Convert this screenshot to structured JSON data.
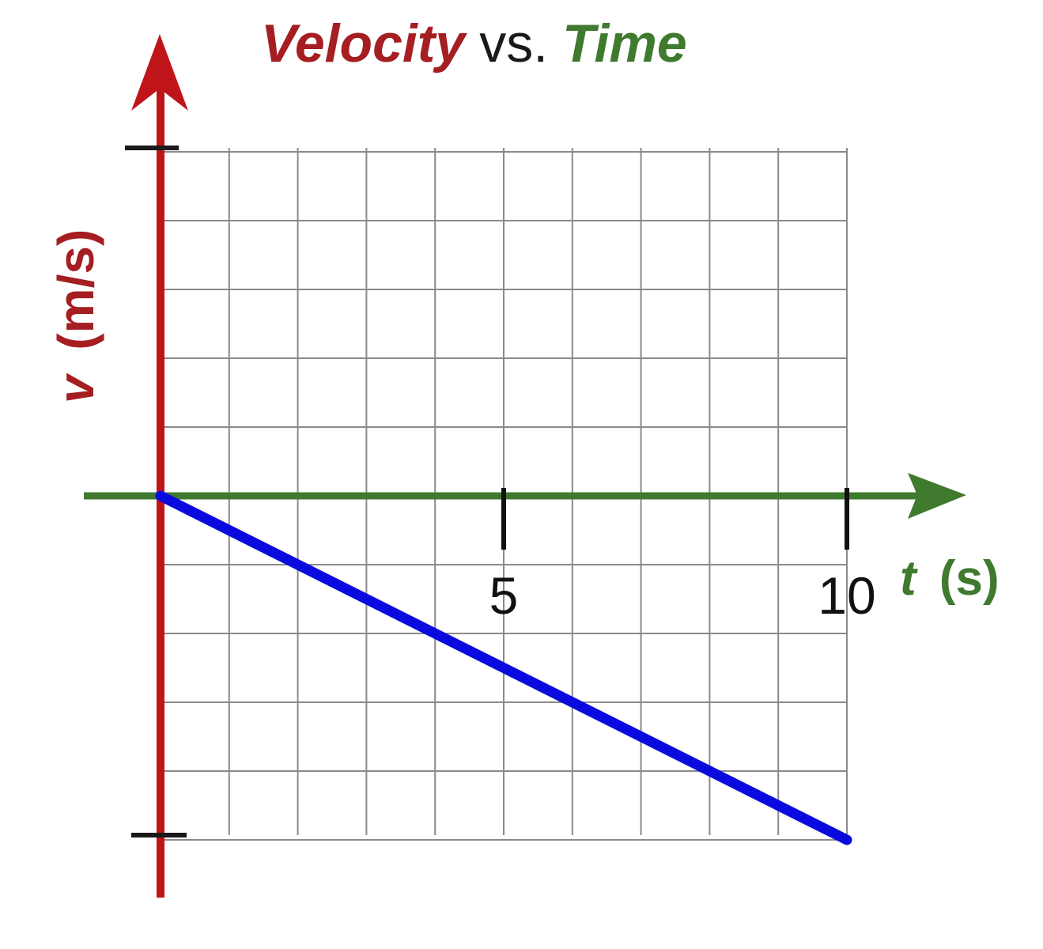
{
  "chart_data": {
    "type": "line",
    "title": {
      "part1": "Velocity",
      "part2": "vs.",
      "part3": "Time"
    },
    "xlabel": {
      "var": "t",
      "unit": "(s)"
    },
    "ylabel": {
      "var": "v",
      "unit": "(m/s)"
    },
    "x_ticks": [
      5,
      10
    ],
    "xlim": [
      0,
      10
    ],
    "grid": true,
    "series": [
      {
        "x": [
          0,
          10
        ],
        "y": [
          0,
          -5
        ]
      }
    ],
    "colors": {
      "y_axis": "#c0141b",
      "x_axis": "#3f7a2e",
      "line": "#0a0adf",
      "grid": "#8a8a8a",
      "title_velocity": "#a51e22",
      "title_time": "#3f7a2e"
    }
  }
}
